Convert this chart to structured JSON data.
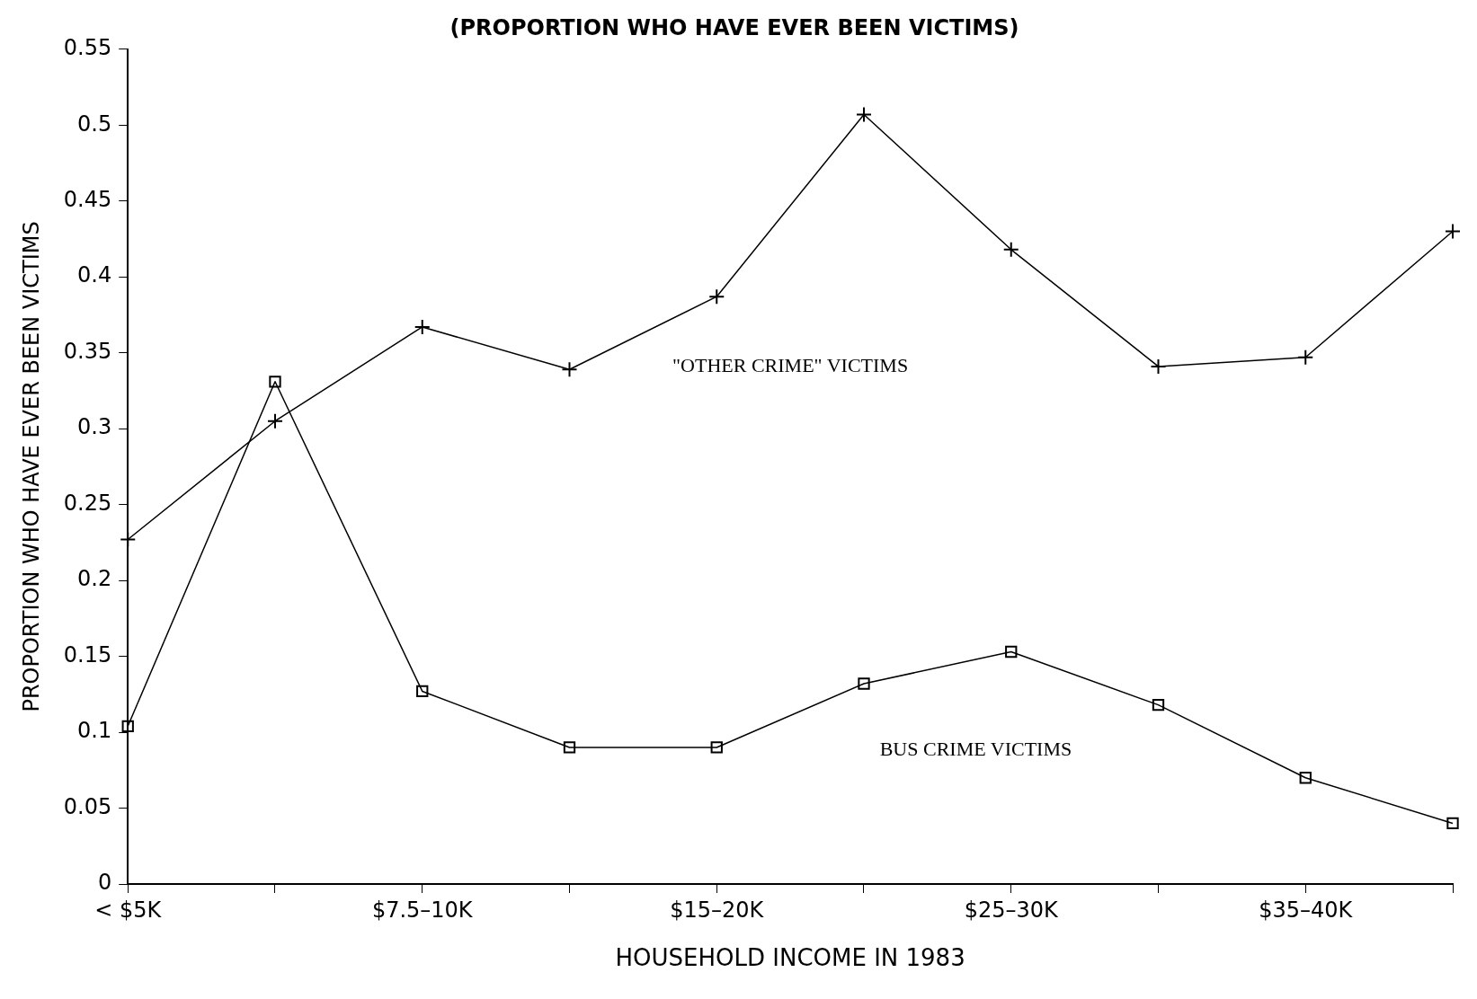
{
  "chart_data": {
    "type": "line",
    "title": "(PROPORTION WHO HAVE EVER BEEN VICTIMS)",
    "xlabel": "HOUSEHOLD INCOME IN 1983",
    "ylabel": "PROPORTION WHO HAVE EVER BEEN VICTIMS",
    "categories": [
      "< $5K",
      null,
      "$7.5–10K",
      null,
      "$15–20K",
      null,
      "$25–30K",
      null,
      "$35–40K",
      null
    ],
    "series": [
      {
        "name": "\"OTHER CRIME\" VICTIMS",
        "color": "#000000",
        "marker": "cross",
        "values": [
          0.227,
          0.305,
          0.367,
          0.339,
          0.387,
          0.507,
          0.418,
          0.341,
          0.347,
          0.43
        ]
      },
      {
        "name": "BUS CRIME VICTIMS",
        "color": "#000000",
        "marker": "square",
        "values": [
          0.104,
          0.331,
          0.127,
          0.09,
          0.09,
          0.132,
          0.153,
          0.118,
          0.07,
          0.04
        ]
      }
    ],
    "ylim": [
      0,
      0.55
    ],
    "yticks": [
      0,
      0.05,
      0.1,
      0.15,
      0.2,
      0.25,
      0.3,
      0.35,
      0.4,
      0.45,
      0.5,
      0.55
    ],
    "grid": false,
    "legend": false,
    "line_style": "solid"
  }
}
